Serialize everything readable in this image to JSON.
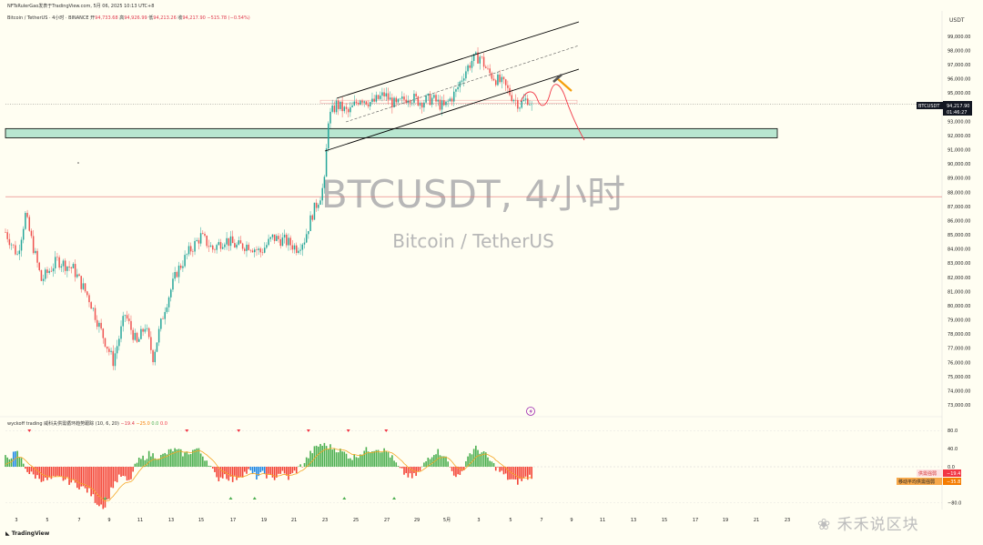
{
  "header": {
    "publisher": "NFTsRulerGao发表于TradingView.com,",
    "date": "5月 06, 2025 10:13 UTC+8",
    "symbol_line": "Bitcoin / TetherUS · 4小时 · BINANCE",
    "open_label": "开",
    "open": "94,733.68",
    "high_label": "高",
    "high": "94,926.99",
    "low_label": "低",
    "low": "94,213.26",
    "close_label": "收",
    "close": "94,217.90",
    "change": "−515.78 (−0.54%)"
  },
  "watermark": {
    "symbol": "BTCUSDT, 4小时",
    "name": "Bitcoin / TetherUS"
  },
  "price_scale": {
    "currency": "USDT",
    "last_symbol": "BTCUSDT",
    "last_price": "94,217.90",
    "countdown": "01:46:27"
  },
  "indicator": {
    "title": "wyckoff trading 威科夫供需循环趋势跟踪 (10, 6, 20)",
    "val1": "−19.4",
    "val2": "−25.0",
    "val3": "0.0",
    "val4": "0.0",
    "label1": "供需强弱",
    "label1_value": "−19.4",
    "label2": "移动平均供需强弱",
    "label2_value": "−35.8"
  },
  "footer": {
    "logo": "TradingView",
    "brand": "禾禾说区块"
  },
  "colors": {
    "bull": "#26a69a",
    "bear": "#ef5350",
    "hist_bull": "#4caf50",
    "hist_bear": "#f44336",
    "hist_blue": "#1e88e5",
    "zone": "#b8e6d0",
    "projection": "#f23645",
    "ma_line": "#f5a623",
    "background": "#fffef2"
  },
  "chart_data": [
    {
      "type": "candlestick",
      "y_unit": "USDT",
      "ylim": [
        72500,
        100800
      ],
      "x_ticks": [
        "3",
        "5",
        "7",
        "9",
        "11",
        "13",
        "15",
        "17",
        "19",
        "21",
        "23",
        "25",
        "27",
        "29",
        "5月",
        "3",
        "5",
        "7",
        "9",
        "11",
        "13",
        "15",
        "17",
        "19",
        "21",
        "23"
      ],
      "y_ticks": [
        "99,000.00",
        "98,000.00",
        "97,000.00",
        "96,000.00",
        "95,000.00",
        "93,000.00",
        "92,000.00",
        "91,000.00",
        "90,000.00",
        "89,000.00",
        "88,000.00",
        "87,000.00",
        "86,000.00",
        "85,000.00",
        "84,000.00",
        "83,000.00",
        "82,000.00",
        "81,000.00",
        "80,000.00",
        "79,000.00",
        "78,000.00",
        "77,000.00",
        "76,000.00",
        "75,000.00",
        "74,000.00",
        "73,000.00"
      ],
      "anchors": [
        {
          "t": 0,
          "p": 85200
        },
        {
          "t": 6,
          "p": 83600
        },
        {
          "t": 10,
          "p": 86400
        },
        {
          "t": 18,
          "p": 81800
        },
        {
          "t": 26,
          "p": 83200
        },
        {
          "t": 34,
          "p": 82600
        },
        {
          "t": 42,
          "p": 80500
        },
        {
          "t": 48,
          "p": 78200
        },
        {
          "t": 54,
          "p": 76100
        },
        {
          "t": 60,
          "p": 79400
        },
        {
          "t": 66,
          "p": 77300
        },
        {
          "t": 70,
          "p": 78600
        },
        {
          "t": 74,
          "p": 76400
        },
        {
          "t": 80,
          "p": 79900
        },
        {
          "t": 86,
          "p": 82400
        },
        {
          "t": 92,
          "p": 83800
        },
        {
          "t": 98,
          "p": 84900
        },
        {
          "t": 104,
          "p": 84000
        },
        {
          "t": 110,
          "p": 84700
        },
        {
          "t": 116,
          "p": 84200
        },
        {
          "t": 122,
          "p": 84300
        },
        {
          "t": 128,
          "p": 83800
        },
        {
          "t": 134,
          "p": 84800
        },
        {
          "t": 140,
          "p": 84600
        },
        {
          "t": 146,
          "p": 84100
        },
        {
          "t": 150,
          "p": 84700
        },
        {
          "t": 154,
          "p": 86500
        },
        {
          "t": 158,
          "p": 87800
        },
        {
          "t": 160,
          "p": 88700
        },
        {
          "t": 162,
          "p": 93200
        },
        {
          "t": 166,
          "p": 94200
        },
        {
          "t": 172,
          "p": 93600
        },
        {
          "t": 178,
          "p": 94700
        },
        {
          "t": 184,
          "p": 94300
        },
        {
          "t": 190,
          "p": 94900
        },
        {
          "t": 196,
          "p": 94100
        },
        {
          "t": 202,
          "p": 94800
        },
        {
          "t": 208,
          "p": 94400
        },
        {
          "t": 214,
          "p": 94600
        },
        {
          "t": 220,
          "p": 94000
        },
        {
          "t": 226,
          "p": 95100
        },
        {
          "t": 230,
          "p": 96400
        },
        {
          "t": 234,
          "p": 97300
        },
        {
          "t": 238,
          "p": 97600
        },
        {
          "t": 242,
          "p": 96500
        },
        {
          "t": 246,
          "p": 96000
        },
        {
          "t": 250,
          "p": 95600
        },
        {
          "t": 254,
          "p": 94800
        },
        {
          "t": 258,
          "p": 94200
        },
        {
          "t": 262,
          "p": 94600
        },
        {
          "t": 264,
          "p": 94200
        }
      ],
      "last_price": 94217.9,
      "horizontal_line": 87700,
      "support_zone": [
        91850,
        92500
      ],
      "resistance_band": [
        94300,
        94500
      ]
    },
    {
      "type": "bar",
      "series": "wyckoff supply-demand histogram",
      "y_ticks": [
        "80.0",
        "40.0",
        "0.0",
        "−80.0"
      ],
      "ylim": [
        -95,
        95
      ],
      "anchors": [
        {
          "t": 0,
          "v": 20
        },
        {
          "t": 6,
          "v": 30
        },
        {
          "t": 12,
          "v": -15
        },
        {
          "t": 20,
          "v": -30
        },
        {
          "t": 28,
          "v": -25
        },
        {
          "t": 36,
          "v": -40
        },
        {
          "t": 42,
          "v": -55
        },
        {
          "t": 46,
          "v": -80
        },
        {
          "t": 50,
          "v": -88
        },
        {
          "t": 54,
          "v": -40
        },
        {
          "t": 58,
          "v": -20
        },
        {
          "t": 62,
          "v": -35
        },
        {
          "t": 66,
          "v": 10
        },
        {
          "t": 72,
          "v": 28
        },
        {
          "t": 78,
          "v": 22
        },
        {
          "t": 84,
          "v": 38
        },
        {
          "t": 90,
          "v": 28
        },
        {
          "t": 96,
          "v": 40
        },
        {
          "t": 102,
          "v": 10
        },
        {
          "t": 106,
          "v": -28
        },
        {
          "t": 110,
          "v": -18
        },
        {
          "t": 114,
          "v": -30
        },
        {
          "t": 118,
          "v": -18
        },
        {
          "t": 122,
          "v": -10
        },
        {
          "t": 126,
          "v": -22
        },
        {
          "t": 130,
          "v": -15
        },
        {
          "t": 134,
          "v": -28
        },
        {
          "t": 138,
          "v": -12
        },
        {
          "t": 142,
          "v": -25
        },
        {
          "t": 146,
          "v": -8
        },
        {
          "t": 150,
          "v": 10
        },
        {
          "t": 154,
          "v": 35
        },
        {
          "t": 158,
          "v": 50
        },
        {
          "t": 162,
          "v": 45
        },
        {
          "t": 166,
          "v": 40
        },
        {
          "t": 170,
          "v": 30
        },
        {
          "t": 174,
          "v": 20
        },
        {
          "t": 180,
          "v": 35
        },
        {
          "t": 186,
          "v": 42
        },
        {
          "t": 192,
          "v": 32
        },
        {
          "t": 198,
          "v": -8
        },
        {
          "t": 204,
          "v": -25
        },
        {
          "t": 208,
          "v": -10
        },
        {
          "t": 212,
          "v": 20
        },
        {
          "t": 216,
          "v": 35
        },
        {
          "t": 220,
          "v": 28
        },
        {
          "t": 224,
          "v": -10
        },
        {
          "t": 228,
          "v": -25
        },
        {
          "t": 232,
          "v": 25
        },
        {
          "t": 236,
          "v": 40
        },
        {
          "t": 240,
          "v": 30
        },
        {
          "t": 244,
          "v": 8
        },
        {
          "t": 248,
          "v": -10
        },
        {
          "t": 252,
          "v": -25
        },
        {
          "t": 256,
          "v": -35
        },
        {
          "t": 260,
          "v": -28
        },
        {
          "t": 264,
          "v": -19
        }
      ],
      "blue_bars": [
        4,
        5,
        123,
        124,
        125,
        126,
        127,
        128,
        129,
        130
      ],
      "orange_bars": [],
      "down_markers": [
        12,
        91,
        117,
        152,
        172,
        191
      ],
      "up_markers": [
        50,
        113,
        125,
        170,
        195
      ]
    }
  ]
}
